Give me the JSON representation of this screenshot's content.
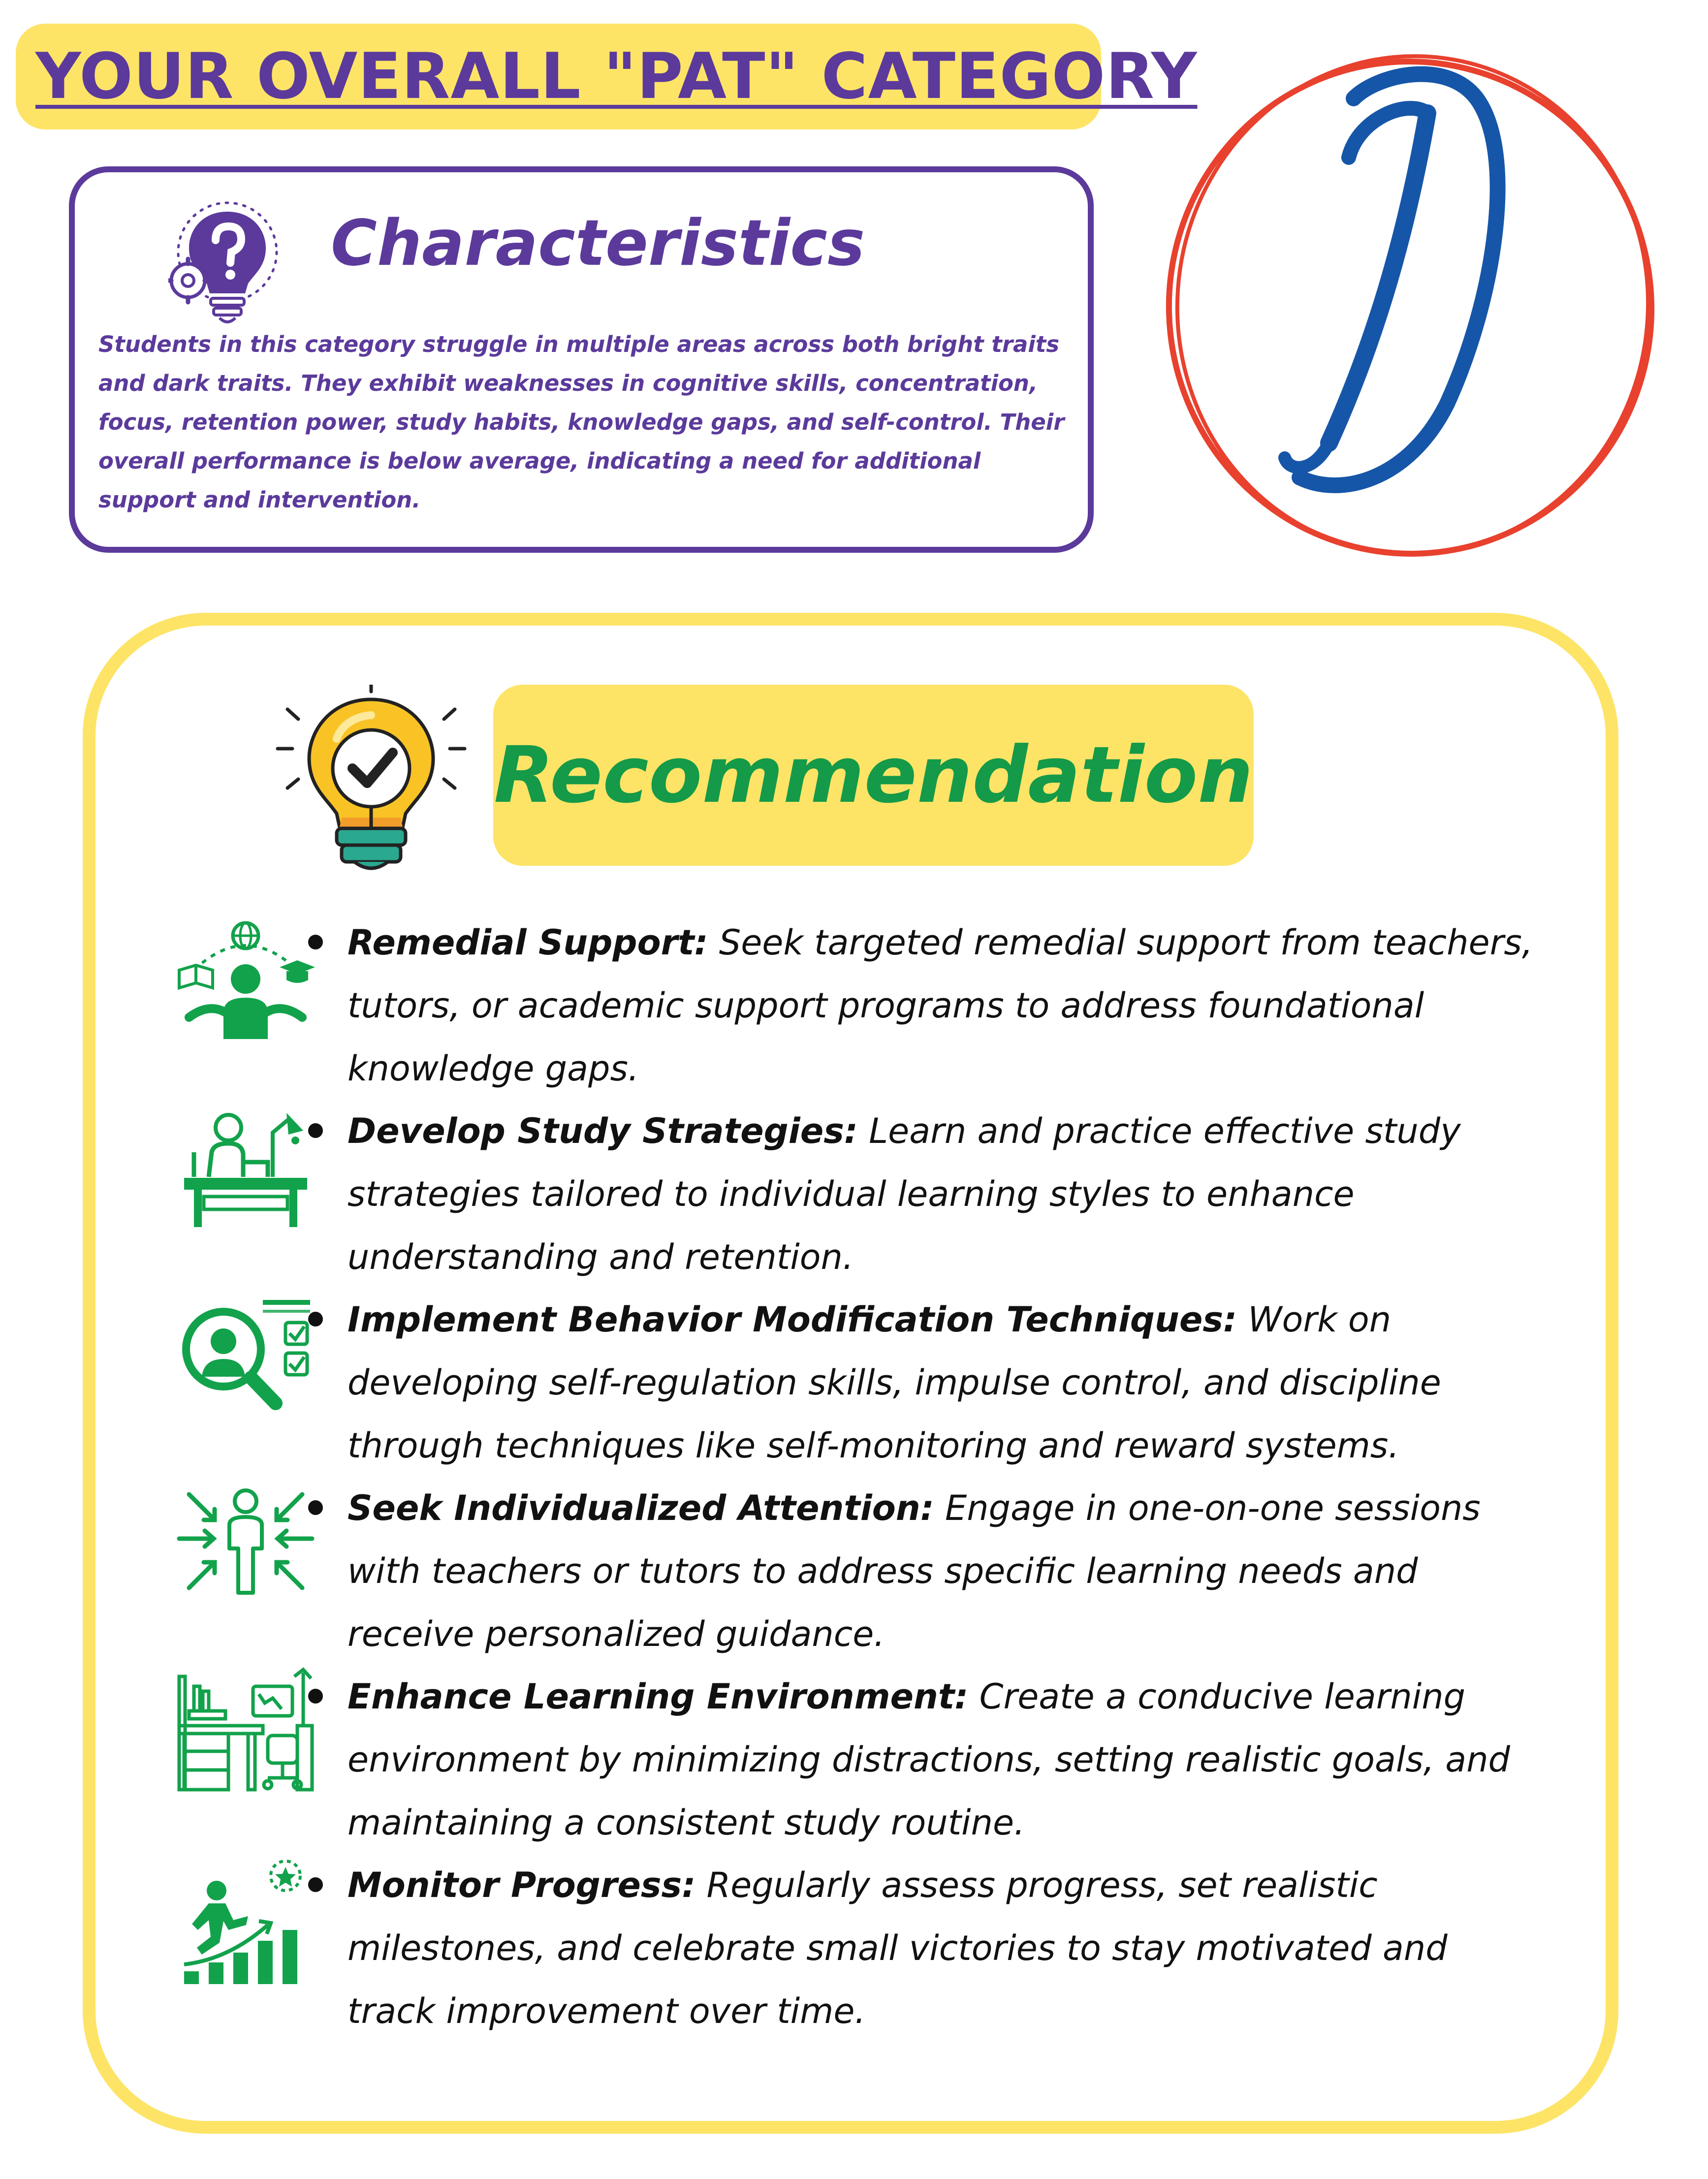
{
  "header": {
    "title": "YOUR OVERALL \"PAT\" CATEGORY"
  },
  "characteristics": {
    "heading": "Characteristics",
    "icon": "lightbulb-question-gear-icon",
    "text": "Students in this category struggle in multiple areas across both bright traits and dark traits. They exhibit weaknesses in cognitive skills, concentration, focus, retention power, study habits, knowledge gaps, and self-control. Their overall performance is below average, indicating a need for additional support and intervention."
  },
  "grade": {
    "letter": "D",
    "letter_color": "#1656a8",
    "circle_color": "#e8412e"
  },
  "recommendation": {
    "heading": "Recommendation",
    "icon": "lightbulb-checkmark-icon",
    "items": [
      {
        "title": "Remedial Support:",
        "text": " Seek targeted remedial support from teachers, tutors, or academic support programs to address foundational knowledge gaps.",
        "icon": "learner-books-globe-icon"
      },
      {
        "title": "Develop Study Strategies:",
        "text": " Learn and practice effective study strategies tailored to individual learning styles to enhance understanding and retention.",
        "icon": "student-desk-lamp-icon"
      },
      {
        "title": "Implement Behavior Modification Techniques:",
        "text": " Work on developing self-regulation skills, impulse control, and discipline through techniques like self-monitoring and reward systems.",
        "icon": "person-magnifier-checklist-icon"
      },
      {
        "title": "Seek Individualized Attention:",
        "text": " Engage in one-on-one sessions with teachers or tutors to address specific learning needs and receive personalized guidance.",
        "icon": "person-focus-arrows-icon"
      },
      {
        "title": "Enhance Learning Environment:",
        "text": " Create a conducive learning environment by minimizing distractions, setting realistic goals, and maintaining a consistent study routine.",
        "icon": "workspace-desk-chair-icon"
      },
      {
        "title": "Monitor Progress:",
        "text": " Regularly assess progress, set realistic milestones, and celebrate small victories to stay motivated and track improvement over time.",
        "icon": "climbing-growth-chart-star-icon"
      }
    ]
  },
  "colors": {
    "yellow": "#fde467",
    "purple": "#5b3a9b",
    "green": "#149a48",
    "icon_green": "#12a24b"
  }
}
